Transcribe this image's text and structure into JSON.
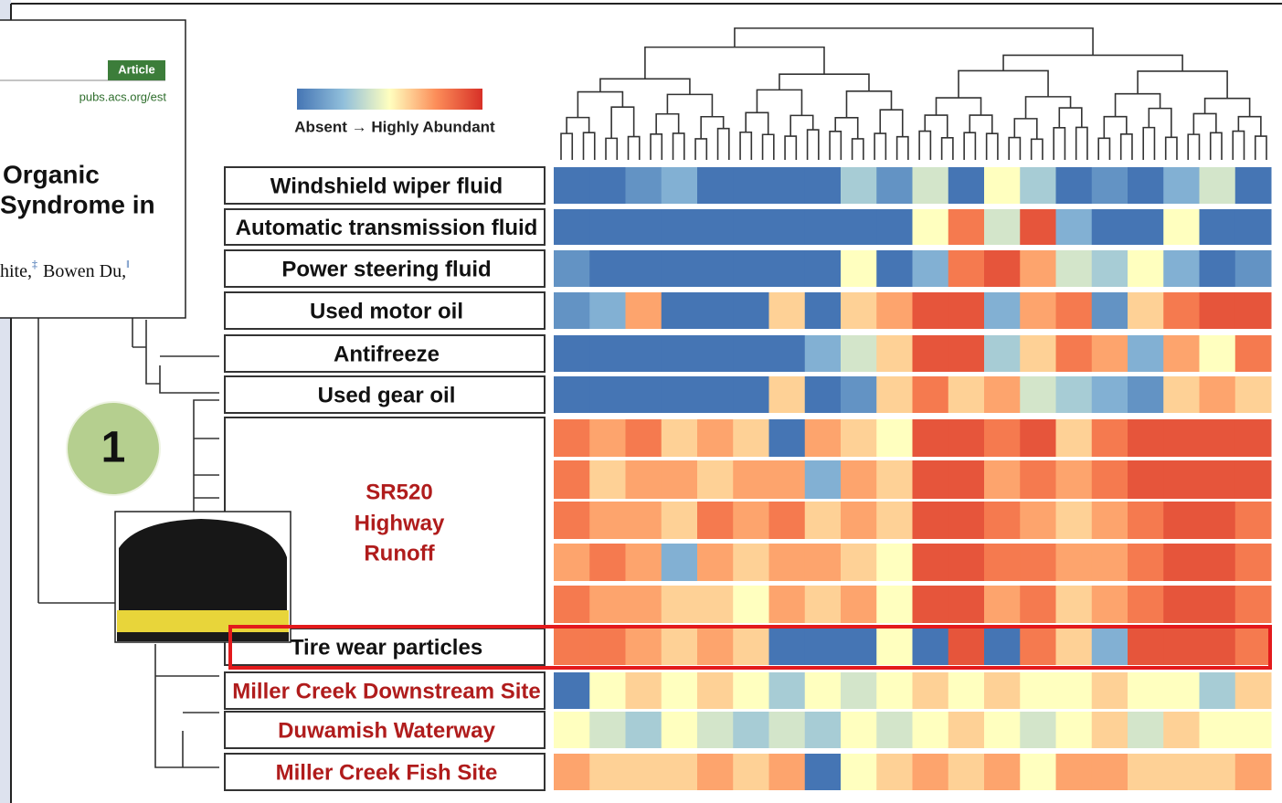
{
  "article_snippet": {
    "badge": "Article",
    "url": "pubs.acs.org/est",
    "title_lines": [
      "Organic",
      "Syndrome in"
    ],
    "authors": [
      "hite,",
      "‡",
      "Bowen Du,",
      "‖"
    ]
  },
  "legend": {
    "label": "Absent → Highly Abundant"
  },
  "slide_number": "1",
  "row_labels": [
    "Windshield wiper fluid",
    "Automatic transmission fluid",
    "Power steering fluid",
    "Used motor oil",
    "Antifreeze",
    "Used gear oil",
    "Tire wear particles",
    "Miller Creek Downstream Site",
    "Duwamish Waterway",
    "Miller Creek Fish Site"
  ],
  "group_label": [
    "SR520",
    "Highway",
    "Runoff"
  ],
  "heatmap": {
    "rows": [
      [
        0,
        0,
        1,
        2,
        0,
        0,
        0,
        0,
        3,
        1,
        4,
        0,
        5,
        3,
        0,
        1,
        0,
        2,
        4,
        0
      ],
      [
        0,
        0,
        0,
        0,
        0,
        0,
        0,
        0,
        0,
        0,
        5,
        8,
        4,
        9,
        2,
        0,
        0,
        5,
        0,
        0
      ],
      [
        1,
        0,
        0,
        0,
        0,
        0,
        0,
        0,
        5,
        0,
        2,
        8,
        9,
        7,
        4,
        3,
        5,
        2,
        0,
        1
      ],
      [
        1,
        2,
        7,
        0,
        0,
        0,
        6,
        0,
        6,
        7,
        9,
        9,
        2,
        7,
        8,
        1,
        6,
        8,
        9,
        9
      ],
      [
        0,
        0,
        0,
        0,
        0,
        0,
        0,
        2,
        4,
        6,
        9,
        9,
        3,
        6,
        8,
        7,
        2,
        7,
        5,
        8
      ],
      [
        0,
        0,
        0,
        0,
        0,
        0,
        6,
        0,
        1,
        6,
        8,
        6,
        7,
        4,
        3,
        2,
        1,
        6,
        7,
        6
      ],
      [
        8,
        7,
        8,
        6,
        7,
        6,
        0,
        7,
        6,
        5,
        9,
        9,
        8,
        9,
        6,
        8,
        9,
        9,
        9,
        9
      ],
      [
        8,
        6,
        7,
        7,
        6,
        7,
        7,
        2,
        7,
        6,
        9,
        9,
        7,
        8,
        7,
        8,
        9,
        9,
        9,
        9
      ],
      [
        8,
        7,
        7,
        6,
        8,
        7,
        8,
        6,
        7,
        6,
        9,
        9,
        8,
        7,
        6,
        7,
        8,
        9,
        9,
        8
      ],
      [
        7,
        8,
        7,
        2,
        7,
        6,
        7,
        7,
        6,
        5,
        9,
        9,
        8,
        8,
        7,
        7,
        8,
        9,
        9,
        8
      ],
      [
        8,
        7,
        7,
        6,
        6,
        5,
        7,
        6,
        7,
        5,
        9,
        9,
        7,
        8,
        6,
        7,
        8,
        9,
        9,
        8
      ],
      [
        8,
        8,
        7,
        6,
        7,
        6,
        0,
        0,
        0,
        5,
        0,
        9,
        0,
        8,
        6,
        2,
        9,
        9,
        9,
        8
      ],
      [
        0,
        5,
        6,
        5,
        6,
        5,
        3,
        5,
        4,
        5,
        6,
        5,
        6,
        5,
        5,
        6,
        5,
        5,
        3,
        6
      ],
      [
        5,
        4,
        3,
        5,
        4,
        3,
        4,
        3,
        5,
        4,
        5,
        6,
        5,
        4,
        5,
        6,
        4,
        6,
        5,
        5
      ],
      [
        7,
        6,
        6,
        6,
        7,
        6,
        7,
        0,
        5,
        6,
        7,
        6,
        7,
        5,
        7,
        7,
        6,
        6,
        6,
        7
      ]
    ]
  }
}
